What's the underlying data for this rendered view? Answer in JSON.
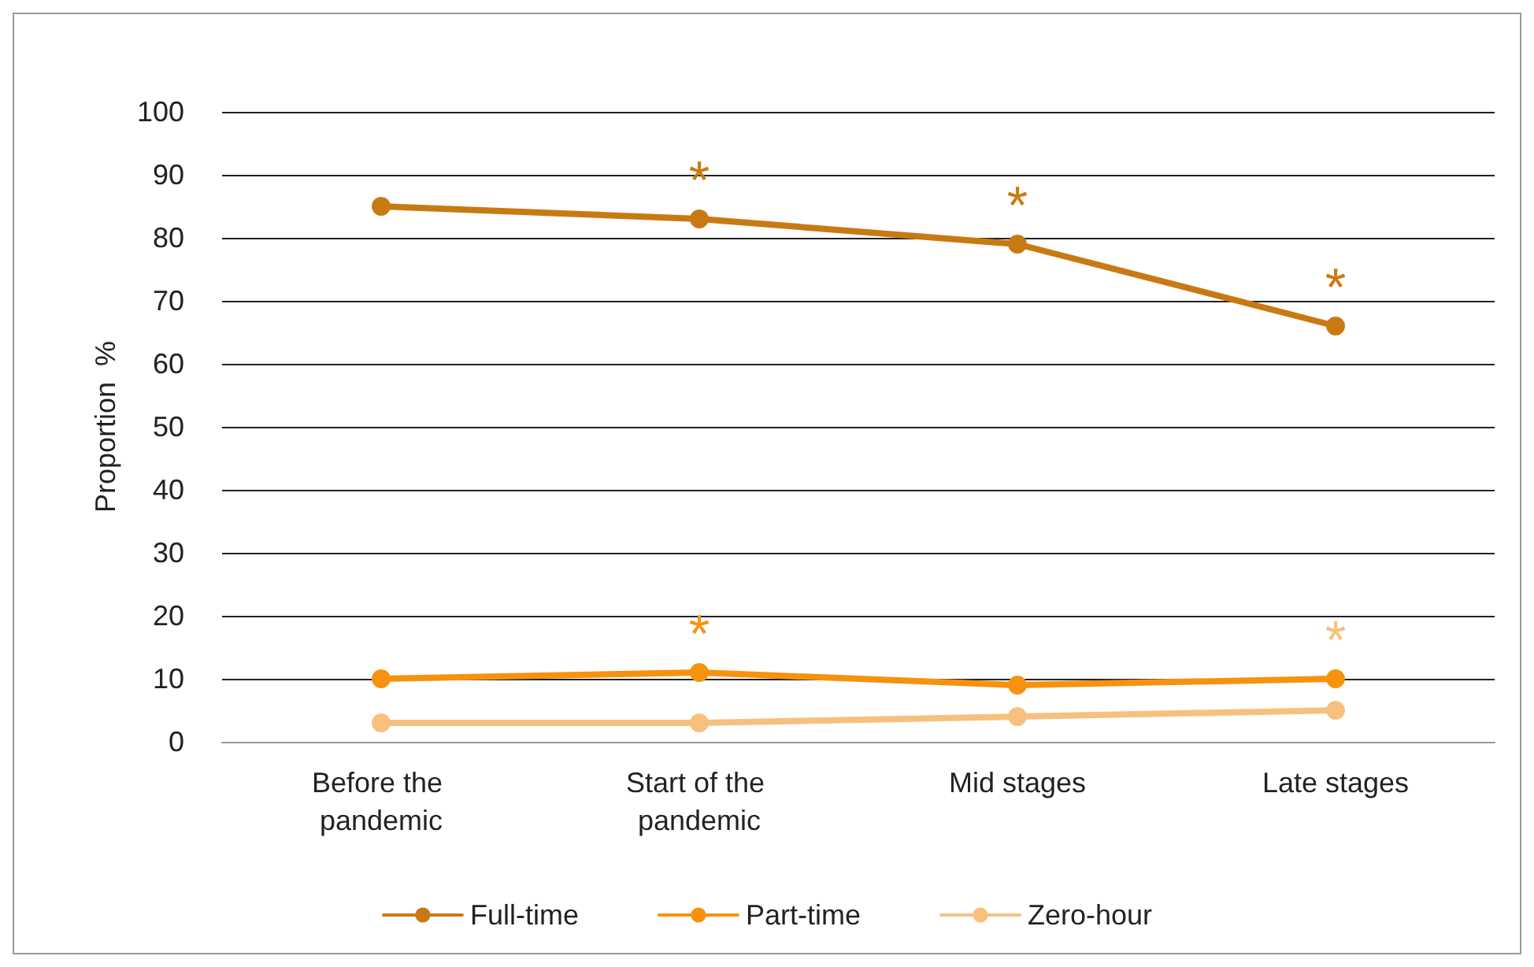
{
  "chart_data": {
    "type": "line",
    "ylabel": "Proportion  %",
    "categories": [
      "Before the pandemic",
      "Start of the pandemic",
      "Mid stages",
      "Late stages"
    ],
    "series": [
      {
        "name": "Full-time",
        "color": "#c87a12",
        "values": [
          85,
          83,
          79,
          66
        ]
      },
      {
        "name": "Part-time",
        "color": "#f7920f",
        "values": [
          10,
          11,
          9,
          10
        ]
      },
      {
        "name": "Zero-hour",
        "color": "#f8c07e",
        "values": [
          3,
          3,
          4,
          5
        ]
      }
    ],
    "ylim": [
      0,
      100
    ],
    "yticks": [
      0,
      10,
      20,
      30,
      40,
      50,
      60,
      70,
      80,
      90,
      100
    ],
    "grid": "y",
    "legend": "bottom",
    "marker": "circle",
    "line_style": "solid",
    "annotations": [
      {
        "text": "*",
        "x": "Start of the pandemic",
        "y": 83
      },
      {
        "text": "*",
        "x": "Mid stages",
        "y": 79
      },
      {
        "text": "*",
        "x": "Late stages",
        "y": 66
      },
      {
        "text": "*",
        "x": "Start of the pandemic",
        "y": 11
      },
      {
        "text": "*",
        "x": "Late stages",
        "y": 5
      }
    ]
  }
}
